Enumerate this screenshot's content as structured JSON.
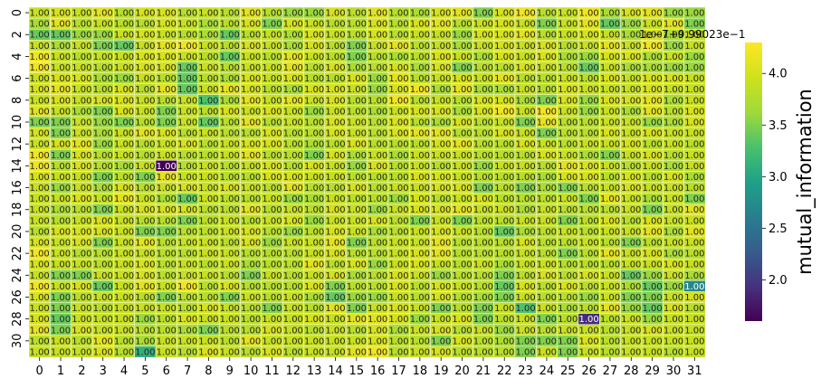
{
  "chart_data": {
    "type": "heatmap",
    "title": "",
    "xlabel": "",
    "ylabel": "",
    "x_ticks": [
      "0",
      "1",
      "2",
      "3",
      "4",
      "5",
      "6",
      "7",
      "8",
      "9",
      "10",
      "11",
      "12",
      "13",
      "14",
      "15",
      "16",
      "17",
      "18",
      "19",
      "20",
      "21",
      "22",
      "23",
      "24",
      "25",
      "26",
      "27",
      "28",
      "29",
      "30",
      "31"
    ],
    "y_ticks": [
      "0",
      "2",
      "4",
      "6",
      "8",
      "10",
      "12",
      "14",
      "16",
      "18",
      "20",
      "22",
      "24",
      "26",
      "28",
      "30"
    ],
    "cell_annotation": "1.00",
    "colorbar": {
      "label": "mutual_information",
      "ticks": [
        "2.0",
        "2.5",
        "3.0",
        "3.5",
        "4.0"
      ],
      "range": [
        1.6,
        4.3
      ],
      "offset_text": "1e−7+9.99023e−1",
      "colormap": "viridis"
    },
    "rows": 32,
    "cols": 32,
    "values": [
      [
        3.9,
        4.0,
        3.9,
        4.1,
        3.8,
        4.0,
        4.0,
        3.8,
        3.9,
        3.8,
        4.1,
        3.8,
        3.6,
        3.6,
        4.0,
        3.8,
        4.1,
        3.8,
        3.7,
        4.0,
        4.1,
        3.5,
        4.0,
        4.2,
        3.8,
        3.9,
        4.2,
        3.7,
        4.0,
        4.1,
        3.6,
        3.6
      ],
      [
        3.7,
        4.1,
        3.8,
        3.9,
        3.8,
        3.8,
        4.0,
        3.9,
        3.7,
        3.8,
        4.0,
        3.5,
        4.0,
        3.9,
        3.8,
        3.8,
        4.0,
        3.8,
        4.0,
        4.1,
        3.8,
        3.9,
        4.0,
        3.9,
        3.5,
        3.9,
        4.1,
        3.4,
        3.6,
        3.9,
        4.1,
        3.5
      ],
      [
        3.4,
        3.4,
        3.6,
        3.6,
        3.9,
        4.0,
        3.9,
        3.8,
        3.7,
        3.4,
        3.8,
        3.9,
        3.7,
        4.0,
        3.9,
        3.8,
        4.0,
        3.8,
        3.9,
        3.9,
        3.6,
        4.0,
        4.0,
        4.1,
        3.8,
        3.9,
        4.0,
        3.9,
        3.7,
        4.0,
        3.7,
        3.9
      ],
      [
        3.9,
        3.7,
        3.9,
        3.5,
        3.4,
        3.9,
        4.1,
        4.2,
        3.9,
        3.8,
        4.0,
        3.9,
        3.7,
        4.0,
        3.8,
        3.5,
        3.9,
        4.1,
        3.8,
        3.9,
        3.7,
        3.9,
        4.0,
        3.9,
        4.0,
        3.8,
        3.9,
        4.1,
        3.9,
        4.2,
        3.6,
        3.9
      ],
      [
        4.2,
        3.9,
        3.8,
        3.9,
        3.9,
        4.0,
        4.0,
        3.9,
        3.8,
        3.4,
        3.9,
        3.8,
        4.1,
        3.9,
        3.8,
        3.5,
        3.8,
        3.7,
        3.8,
        4.0,
        3.9,
        3.7,
        4.0,
        3.9,
        4.0,
        3.7,
        3.6,
        4.0,
        4.0,
        3.7,
        3.9,
        3.6
      ],
      [
        4.2,
        3.9,
        3.9,
        3.8,
        3.9,
        4.0,
        4.0,
        3.4,
        3.9,
        3.8,
        3.9,
        3.9,
        4.1,
        3.8,
        4.0,
        3.7,
        3.8,
        4.0,
        3.7,
        4.0,
        3.5,
        3.8,
        3.8,
        4.0,
        3.9,
        3.8,
        3.4,
        3.9,
        3.7,
        3.7,
        3.6,
        3.6
      ],
      [
        3.9,
        4.0,
        4.0,
        3.7,
        3.6,
        3.9,
        3.8,
        3.4,
        3.8,
        3.7,
        4.0,
        3.9,
        4.0,
        3.8,
        3.8,
        4.0,
        3.6,
        4.1,
        3.8,
        3.9,
        4.0,
        3.9,
        4.1,
        3.8,
        3.8,
        3.9,
        3.8,
        4.0,
        3.9,
        4.0,
        4.0,
        3.9
      ],
      [
        4.0,
        4.1,
        3.9,
        3.8,
        4.0,
        3.8,
        4.1,
        3.4,
        3.9,
        4.1,
        4.0,
        3.8,
        3.7,
        4.0,
        4.0,
        3.9,
        3.6,
        4.0,
        4.2,
        3.7,
        4.1,
        3.7,
        3.7,
        3.9,
        3.8,
        4.0,
        3.9,
        3.9,
        3.9,
        4.0,
        3.9,
        3.9
      ],
      [
        3.9,
        4.0,
        3.9,
        4.0,
        4.0,
        3.9,
        3.8,
        3.9,
        3.3,
        3.7,
        4.1,
        3.9,
        4.1,
        3.9,
        4.0,
        3.8,
        3.8,
        4.2,
        3.8,
        3.9,
        3.8,
        4.0,
        4.0,
        3.7,
        3.5,
        4.0,
        3.6,
        4.0,
        4.0,
        4.1,
        3.7,
        3.9
      ],
      [
        4.1,
        3.9,
        3.7,
        3.5,
        4.0,
        3.9,
        3.5,
        3.9,
        3.8,
        4.0,
        3.9,
        4.0,
        3.9,
        3.6,
        3.9,
        3.8,
        3.7,
        3.9,
        4.0,
        4.0,
        3.7,
        4.0,
        4.2,
        3.9,
        4.2,
        3.9,
        3.6,
        3.9,
        3.7,
        4.1,
        3.8,
        4.0
      ],
      [
        3.5,
        3.5,
        3.9,
        3.6,
        3.5,
        3.8,
        3.5,
        3.9,
        3.4,
        3.8,
        4.1,
        3.8,
        3.9,
        3.8,
        4.0,
        3.9,
        3.8,
        4.0,
        3.8,
        3.7,
        4.0,
        3.8,
        3.9,
        3.5,
        4.1,
        3.8,
        3.8,
        3.9,
        3.9,
        3.6,
        3.7,
        4.0
      ],
      [
        4.0,
        3.5,
        3.9,
        3.7,
        3.9,
        4.1,
        4.0,
        3.8,
        3.9,
        3.8,
        3.8,
        4.0,
        3.8,
        3.8,
        4.0,
        3.9,
        3.8,
        4.0,
        4.1,
        4.1,
        3.8,
        3.8,
        4.0,
        3.9,
        3.5,
        3.8,
        3.8,
        4.0,
        3.9,
        4.0,
        3.9,
        3.9
      ],
      [
        3.9,
        4.0,
        4.1,
        3.6,
        3.9,
        3.8,
        3.9,
        4.0,
        3.8,
        3.9,
        4.0,
        4.0,
        3.8,
        3.7,
        3.8,
        4.0,
        3.8,
        3.8,
        3.8,
        4.0,
        4.1,
        3.8,
        3.8,
        4.0,
        3.9,
        3.8,
        3.9,
        3.9,
        4.0,
        3.8,
        3.9,
        3.8
      ],
      [
        4.2,
        3.5,
        4.0,
        3.8,
        3.9,
        3.8,
        3.9,
        3.8,
        3.8,
        3.9,
        4.1,
        3.8,
        3.8,
        3.5,
        4.0,
        3.7,
        3.9,
        3.7,
        3.9,
        3.9,
        3.9,
        3.8,
        3.8,
        3.8,
        4.0,
        3.9,
        3.7,
        3.5,
        3.9,
        4.0,
        3.8,
        3.9
      ],
      [
        4.2,
        3.8,
        4.0,
        3.8,
        3.7,
        3.9,
        1.6,
        3.8,
        3.9,
        3.8,
        3.9,
        4.0,
        3.8,
        4.0,
        3.9,
        3.6,
        4.0,
        3.8,
        3.9,
        3.8,
        3.9,
        3.6,
        3.9,
        3.9,
        3.8,
        4.1,
        4.0,
        3.9,
        3.8,
        3.9,
        3.7,
        3.9
      ],
      [
        4.0,
        3.9,
        3.9,
        3.5,
        3.8,
        3.5,
        4.1,
        3.9,
        3.9,
        3.8,
        3.8,
        4.0,
        4.0,
        3.9,
        3.9,
        3.8,
        3.8,
        3.8,
        4.0,
        4.0,
        3.9,
        3.8,
        3.8,
        3.8,
        3.7,
        4.0,
        4.0,
        3.8,
        4.0,
        3.8,
        4.0,
        3.7
      ],
      [
        3.9,
        3.6,
        3.9,
        3.7,
        4.0,
        3.8,
        3.9,
        4.0,
        3.9,
        4.0,
        3.9,
        3.8,
        4.1,
        3.8,
        3.8,
        4.0,
        3.8,
        3.9,
        3.9,
        4.0,
        4.0,
        3.5,
        3.8,
        3.5,
        3.7,
        3.5,
        3.8,
        3.9,
        4.0,
        3.9,
        3.9,
        3.8
      ],
      [
        3.9,
        3.9,
        4.0,
        3.9,
        4.1,
        3.9,
        3.7,
        3.4,
        3.9,
        3.8,
        3.8,
        3.9,
        3.6,
        3.7,
        3.9,
        3.8,
        3.8,
        3.6,
        4.0,
        3.8,
        3.9,
        4.0,
        3.8,
        3.8,
        3.8,
        3.9,
        3.5,
        4.1,
        3.9,
        3.7,
        3.9,
        3.5
      ],
      [
        3.9,
        3.7,
        3.8,
        3.5,
        3.9,
        4.0,
        4.0,
        4.0,
        3.8,
        3.8,
        4.1,
        3.8,
        3.9,
        3.8,
        4.0,
        3.9,
        3.6,
        3.9,
        4.0,
        4.0,
        4.1,
        3.9,
        3.9,
        3.7,
        3.9,
        3.8,
        3.8,
        3.8,
        3.9,
        3.5,
        3.9,
        4.1
      ],
      [
        3.9,
        3.8,
        3.9,
        4.0,
        3.9,
        3.8,
        3.8,
        3.5,
        3.8,
        3.9,
        3.8,
        3.9,
        4.0,
        3.6,
        3.9,
        3.9,
        4.0,
        3.8,
        3.5,
        3.9,
        3.5,
        3.8,
        3.8,
        3.9,
        3.9,
        3.5,
        3.8,
        4.0,
        3.8,
        4.0,
        3.9,
        3.9
      ],
      [
        3.8,
        4.0,
        4.0,
        4.0,
        3.9,
        3.5,
        3.5,
        3.8,
        3.8,
        3.9,
        4.0,
        3.8,
        3.6,
        3.8,
        4.0,
        3.9,
        3.7,
        3.8,
        3.9,
        4.0,
        3.9,
        3.8,
        3.4,
        3.7,
        3.8,
        3.9,
        3.8,
        3.9,
        3.9,
        4.1,
        3.7,
        4.1
      ],
      [
        4.0,
        3.9,
        4.0,
        3.5,
        3.9,
        4.1,
        3.8,
        3.9,
        3.9,
        3.8,
        4.0,
        3.6,
        3.9,
        3.9,
        4.1,
        3.5,
        3.8,
        3.9,
        3.9,
        4.1,
        3.8,
        3.8,
        3.8,
        4.0,
        3.8,
        3.8,
        3.9,
        3.8,
        3.5,
        3.8,
        3.9,
        3.9
      ],
      [
        4.2,
        3.9,
        3.8,
        3.8,
        3.9,
        3.9,
        3.8,
        3.8,
        3.9,
        3.9,
        3.8,
        3.8,
        3.8,
        3.9,
        4.0,
        3.8,
        3.8,
        3.9,
        4.0,
        4.1,
        3.8,
        3.8,
        3.8,
        3.9,
        3.8,
        3.5,
        3.8,
        4.1,
        3.9,
        4.0,
        3.7,
        3.8
      ],
      [
        4.0,
        3.9,
        3.9,
        3.8,
        3.9,
        4.0,
        3.8,
        3.9,
        3.8,
        3.9,
        3.7,
        3.8,
        3.8,
        4.1,
        3.8,
        4.0,
        3.6,
        3.9,
        4.0,
        3.9,
        3.8,
        3.9,
        3.7,
        3.9,
        3.9,
        3.8,
        3.8,
        3.8,
        3.9,
        3.9,
        4.0,
        3.9
      ],
      [
        3.9,
        3.5,
        3.5,
        3.9,
        3.9,
        4.0,
        3.8,
        3.9,
        3.9,
        3.8,
        3.5,
        3.9,
        3.8,
        3.9,
        4.0,
        3.7,
        3.8,
        4.0,
        3.9,
        3.6,
        3.8,
        3.8,
        3.5,
        3.8,
        4.0,
        3.8,
        4.0,
        3.9,
        3.4,
        3.6,
        3.9,
        3.7
      ],
      [
        4.2,
        3.9,
        4.0,
        3.4,
        3.9,
        4.1,
        3.9,
        4.2,
        3.8,
        4.0,
        3.8,
        3.8,
        3.8,
        4.0,
        3.5,
        3.8,
        3.8,
        4.0,
        3.8,
        4.0,
        3.9,
        3.8,
        3.4,
        4.0,
        3.8,
        4.0,
        3.8,
        3.9,
        3.7,
        3.4,
        3.6,
        2.7
      ],
      [
        4.0,
        3.5,
        3.8,
        3.9,
        3.9,
        3.8,
        3.5,
        3.8,
        3.8,
        3.5,
        3.9,
        3.8,
        3.9,
        3.7,
        3.4,
        3.6,
        3.6,
        3.9,
        3.8,
        4.0,
        3.8,
        3.7,
        3.5,
        3.9,
        3.8,
        3.8,
        3.6,
        3.9,
        3.5,
        3.5,
        3.9,
        4.0
      ],
      [
        3.9,
        3.5,
        3.9,
        3.8,
        3.9,
        3.9,
        3.9,
        3.8,
        4.0,
        3.9,
        3.8,
        3.5,
        3.9,
        3.8,
        4.1,
        3.5,
        3.9,
        4.0,
        3.9,
        3.5,
        3.8,
        3.5,
        3.9,
        3.3,
        3.9,
        3.7,
        3.8,
        4.1,
        3.6,
        3.4,
        4.0,
        3.8
      ],
      [
        4.0,
        3.4,
        3.9,
        3.9,
        3.9,
        3.6,
        3.8,
        4.0,
        3.9,
        3.9,
        3.8,
        3.9,
        3.9,
        4.0,
        3.9,
        4.1,
        4.1,
        4.0,
        3.6,
        3.9,
        4.0,
        3.5,
        3.8,
        3.9,
        3.5,
        3.8,
        1.9,
        3.8,
        3.9,
        3.6,
        3.9,
        3.9
      ],
      [
        4.1,
        3.5,
        4.0,
        3.9,
        3.9,
        3.8,
        3.8,
        3.7,
        3.5,
        3.8,
        3.8,
        4.0,
        3.9,
        3.8,
        3.9,
        3.8,
        4.0,
        3.7,
        3.9,
        4.0,
        3.8,
        3.9,
        3.6,
        3.9,
        3.8,
        3.9,
        3.9,
        3.8,
        3.9,
        4.0,
        3.9,
        3.9
      ],
      [
        3.8,
        3.9,
        3.8,
        4.1,
        3.8,
        3.7,
        3.9,
        3.9,
        3.9,
        3.8,
        4.1,
        3.9,
        3.9,
        3.9,
        3.9,
        3.9,
        4.0,
        3.8,
        3.8,
        3.5,
        4.0,
        3.8,
        3.7,
        3.5,
        3.5,
        3.5,
        4.0,
        3.8,
        3.9,
        3.9,
        3.9,
        3.9
      ],
      [
        3.9,
        3.9,
        3.9,
        4.0,
        3.8,
        3.1,
        3.9,
        3.8,
        4.0,
        3.9,
        3.8,
        4.0,
        3.8,
        3.9,
        3.9,
        4.1,
        4.2,
        3.8,
        3.9,
        4.0,
        3.8,
        3.8,
        3.8,
        3.5,
        3.9,
        3.5,
        3.9,
        3.8,
        3.9,
        3.9,
        3.8,
        3.9
      ]
    ]
  }
}
